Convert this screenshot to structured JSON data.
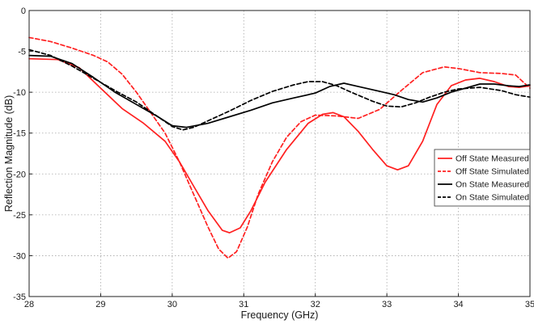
{
  "chart_data": {
    "type": "line",
    "xlabel": "Frequency (GHz)",
    "ylabel": "Reflection Magnitude (dB)",
    "xlim": [
      28,
      35
    ],
    "ylim": [
      -35,
      0
    ],
    "xticks": [
      28,
      29,
      30,
      31,
      32,
      33,
      34,
      35
    ],
    "yticks": [
      0,
      -5,
      -10,
      -15,
      -20,
      -25,
      -30,
      -35
    ],
    "grid": true,
    "legend_position": "right",
    "series": [
      {
        "name": "Off State Measured",
        "color": "#ff2020",
        "dash": "solid",
        "points": [
          [
            28,
            -5.9
          ],
          [
            28.4,
            -6.0
          ],
          [
            28.7,
            -7.0
          ],
          [
            29.0,
            -9.5
          ],
          [
            29.3,
            -12.0
          ],
          [
            29.6,
            -13.8
          ],
          [
            29.9,
            -16.0
          ],
          [
            30.1,
            -18.5
          ],
          [
            30.3,
            -21.5
          ],
          [
            30.5,
            -24.5
          ],
          [
            30.7,
            -26.9
          ],
          [
            30.8,
            -27.2
          ],
          [
            30.95,
            -26.6
          ],
          [
            31.1,
            -24.5
          ],
          [
            31.3,
            -21.0
          ],
          [
            31.6,
            -17.0
          ],
          [
            31.9,
            -13.8
          ],
          [
            32.1,
            -12.7
          ],
          [
            32.25,
            -12.5
          ],
          [
            32.4,
            -13.0
          ],
          [
            32.6,
            -14.8
          ],
          [
            32.8,
            -17.0
          ],
          [
            33.0,
            -19.0
          ],
          [
            33.15,
            -19.5
          ],
          [
            33.3,
            -19.0
          ],
          [
            33.5,
            -16.0
          ],
          [
            33.7,
            -11.5
          ],
          [
            33.9,
            -9.2
          ],
          [
            34.1,
            -8.5
          ],
          [
            34.3,
            -8.3
          ],
          [
            34.5,
            -8.7
          ],
          [
            34.7,
            -9.3
          ],
          [
            34.85,
            -9.4
          ],
          [
            35.0,
            -9.2
          ]
        ]
      },
      {
        "name": "Off State Simulated",
        "color": "#ff2020",
        "dash": "dashed",
        "points": [
          [
            28,
            -3.3
          ],
          [
            28.3,
            -3.8
          ],
          [
            28.6,
            -4.6
          ],
          [
            28.9,
            -5.5
          ],
          [
            29.1,
            -6.3
          ],
          [
            29.3,
            -7.8
          ],
          [
            29.5,
            -10.0
          ],
          [
            29.7,
            -12.5
          ],
          [
            29.9,
            -15.0
          ],
          [
            30.1,
            -18.5
          ],
          [
            30.3,
            -22.5
          ],
          [
            30.5,
            -26.5
          ],
          [
            30.65,
            -29.2
          ],
          [
            30.78,
            -30.3
          ],
          [
            30.9,
            -29.5
          ],
          [
            31.05,
            -26.5
          ],
          [
            31.2,
            -22.5
          ],
          [
            31.4,
            -18.5
          ],
          [
            31.6,
            -15.5
          ],
          [
            31.8,
            -13.6
          ],
          [
            32.0,
            -12.8
          ],
          [
            32.3,
            -12.9
          ],
          [
            32.6,
            -13.2
          ],
          [
            32.9,
            -12.1
          ],
          [
            33.2,
            -9.8
          ],
          [
            33.5,
            -7.6
          ],
          [
            33.8,
            -6.9
          ],
          [
            34.0,
            -7.1
          ],
          [
            34.3,
            -7.6
          ],
          [
            34.6,
            -7.7
          ],
          [
            34.8,
            -7.9
          ],
          [
            35.0,
            -9.5
          ]
        ]
      },
      {
        "name": "On State Measured",
        "color": "#000000",
        "dash": "solid",
        "points": [
          [
            28,
            -5.5
          ],
          [
            28.3,
            -5.6
          ],
          [
            28.6,
            -6.5
          ],
          [
            28.9,
            -8.2
          ],
          [
            29.2,
            -10.0
          ],
          [
            29.5,
            -11.5
          ],
          [
            29.8,
            -13.0
          ],
          [
            30.0,
            -14.1
          ],
          [
            30.2,
            -14.3
          ],
          [
            30.5,
            -13.8
          ],
          [
            30.8,
            -13.0
          ],
          [
            31.1,
            -12.2
          ],
          [
            31.4,
            -11.3
          ],
          [
            31.7,
            -10.7
          ],
          [
            32.0,
            -10.1
          ],
          [
            32.2,
            -9.3
          ],
          [
            32.4,
            -8.9
          ],
          [
            32.6,
            -9.3
          ],
          [
            32.9,
            -9.9
          ],
          [
            33.1,
            -10.3
          ],
          [
            33.3,
            -10.9
          ],
          [
            33.5,
            -11.2
          ],
          [
            33.7,
            -10.7
          ],
          [
            33.9,
            -10.0
          ],
          [
            34.1,
            -9.5
          ],
          [
            34.3,
            -9.0
          ],
          [
            34.5,
            -9.0
          ],
          [
            34.7,
            -9.2
          ],
          [
            34.85,
            -9.3
          ],
          [
            35.0,
            -9.1
          ]
        ]
      },
      {
        "name": "On State Simulated",
        "color": "#000000",
        "dash": "dashed",
        "points": [
          [
            28,
            -4.8
          ],
          [
            28.3,
            -5.5
          ],
          [
            28.6,
            -6.8
          ],
          [
            28.9,
            -8.3
          ],
          [
            29.2,
            -9.8
          ],
          [
            29.5,
            -11.2
          ],
          [
            29.8,
            -13.0
          ],
          [
            30.0,
            -14.2
          ],
          [
            30.15,
            -14.6
          ],
          [
            30.3,
            -14.3
          ],
          [
            30.5,
            -13.5
          ],
          [
            30.8,
            -12.3
          ],
          [
            31.1,
            -11.0
          ],
          [
            31.4,
            -9.9
          ],
          [
            31.7,
            -9.1
          ],
          [
            31.9,
            -8.7
          ],
          [
            32.1,
            -8.7
          ],
          [
            32.3,
            -9.2
          ],
          [
            32.5,
            -10.0
          ],
          [
            32.8,
            -11.1
          ],
          [
            33.0,
            -11.7
          ],
          [
            33.2,
            -11.8
          ],
          [
            33.4,
            -11.3
          ],
          [
            33.6,
            -10.6
          ],
          [
            33.8,
            -10.0
          ],
          [
            34.0,
            -9.6
          ],
          [
            34.3,
            -9.4
          ],
          [
            34.6,
            -9.8
          ],
          [
            34.8,
            -10.3
          ],
          [
            35.0,
            -10.6
          ]
        ]
      }
    ]
  }
}
